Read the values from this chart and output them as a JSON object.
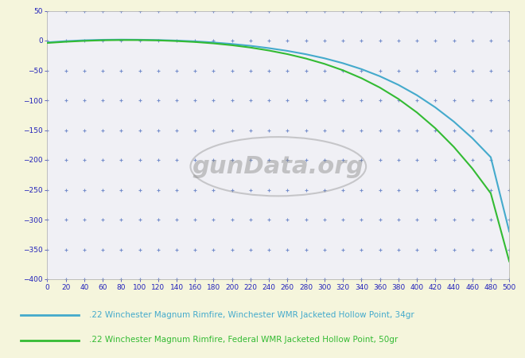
{
  "background_color": "#f5f5dc",
  "plot_bg_color": "#f0f0f5",
  "grid_color": "#4466bb",
  "x_min": 0,
  "x_max": 500,
  "x_step": 20,
  "y_min": -400,
  "y_max": 50,
  "y_step": 50,
  "tick_label_color": "#2222bb",
  "legend_label_color1": "#44aacc",
  "legend_label_color2": "#33bb33",
  "line1_color": "#44aacc",
  "line2_color": "#33bb33",
  "line1_label": ".22 Winchester Magnum Rimfire, Winchester WMR Jacketed Hollow Point, 34gr",
  "line2_label": ".22 Winchester Magnum Rimfire, Federal WMR Jacketed Hollow Point, 50gr",
  "watermark_text": "gunData.org",
  "line1_x": [
    0,
    20,
    40,
    60,
    80,
    100,
    120,
    140,
    160,
    180,
    200,
    220,
    240,
    260,
    280,
    300,
    320,
    340,
    360,
    380,
    400,
    420,
    440,
    460,
    480,
    500
  ],
  "line1_y": [
    -3.0,
    -1.0,
    0.5,
    1.3,
    1.6,
    1.4,
    0.9,
    0.0,
    -1.3,
    -3.2,
    -5.7,
    -8.8,
    -12.7,
    -17.3,
    -22.9,
    -29.7,
    -37.9,
    -47.8,
    -59.8,
    -74.2,
    -91.5,
    -112.0,
    -135.8,
    -163.5,
    -195.5,
    -320.0
  ],
  "line2_x": [
    0,
    20,
    40,
    60,
    80,
    100,
    120,
    140,
    160,
    180,
    200,
    220,
    240,
    260,
    280,
    300,
    320,
    340,
    360,
    380,
    400,
    420,
    440,
    460,
    480,
    500
  ],
  "line2_y": [
    -4.0,
    -2.0,
    -0.5,
    0.5,
    0.9,
    0.8,
    0.3,
    -0.8,
    -2.4,
    -4.7,
    -7.8,
    -11.7,
    -16.7,
    -22.7,
    -30.1,
    -39.0,
    -49.8,
    -63.0,
    -78.8,
    -97.8,
    -120.4,
    -147.0,
    -178.2,
    -214.3,
    -256.0,
    -370.0
  ]
}
